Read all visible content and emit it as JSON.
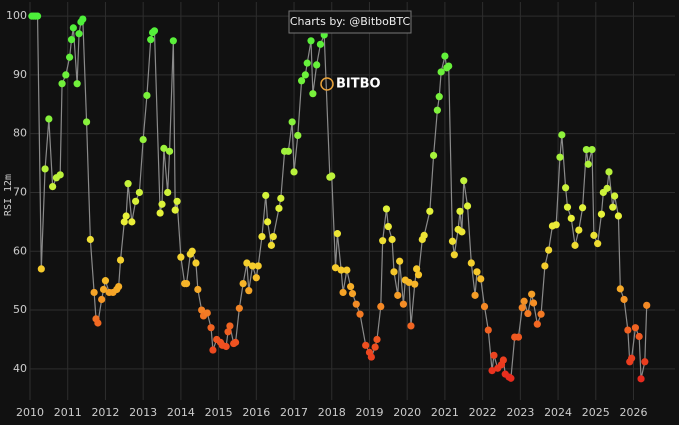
{
  "chart_data": {
    "type": "line-scatter",
    "y_label": "RSI 12m",
    "annotation": "Charts by: @BitboBTC",
    "watermark": "BITBO",
    "grid": true,
    "line_color": "#8a8a8a",
    "colorscale": [
      [
        38,
        "#e8281e"
      ],
      [
        48,
        "#f26a22"
      ],
      [
        56,
        "#f7c52a"
      ],
      [
        66,
        "#e8f23a"
      ],
      [
        80,
        "#8ef23c"
      ],
      [
        100,
        "#4cf03a"
      ]
    ],
    "xlim": [
      2010,
      2027.1
    ],
    "ylim": [
      34.7,
      102.4
    ],
    "xticks": [
      2010,
      2011,
      2012,
      2013,
      2014,
      2015,
      2016,
      2017,
      2018,
      2019,
      2020,
      2021,
      2022,
      2023,
      2024,
      2025,
      2026
    ],
    "yticks": [
      40,
      50,
      60,
      70,
      80,
      90,
      100
    ],
    "x": [
      2010.05,
      2010.1,
      2010.15,
      2010.2,
      2010.3,
      2010.4,
      2010.5,
      2010.6,
      2010.7,
      2010.8,
      2010.85,
      2010.95,
      2011.05,
      2011.1,
      2011.15,
      2011.25,
      2011.3,
      2011.35,
      2011.4,
      2011.5,
      2011.6,
      2011.7,
      2011.75,
      2011.8,
      2011.9,
      2011.95,
      2012.0,
      2012.1,
      2012.2,
      2012.3,
      2012.35,
      2012.4,
      2012.5,
      2012.55,
      2012.6,
      2012.7,
      2012.8,
      2012.9,
      2013.0,
      2013.1,
      2013.2,
      2013.25,
      2013.3,
      2013.45,
      2013.5,
      2013.55,
      2013.65,
      2013.7,
      2013.8,
      2013.85,
      2013.9,
      2014.0,
      2014.1,
      2014.15,
      2014.25,
      2014.3,
      2014.4,
      2014.45,
      2014.55,
      2014.6,
      2014.7,
      2014.8,
      2014.85,
      2014.95,
      2015.05,
      2015.1,
      2015.2,
      2015.25,
      2015.3,
      2015.4,
      2015.45,
      2015.55,
      2015.65,
      2015.75,
      2015.8,
      2015.9,
      2016.0,
      2016.05,
      2016.15,
      2016.25,
      2016.3,
      2016.4,
      2016.45,
      2016.6,
      2016.65,
      2016.75,
      2016.85,
      2016.95,
      2017.0,
      2017.1,
      2017.2,
      2017.3,
      2017.35,
      2017.45,
      2017.5,
      2017.6,
      2017.7,
      2017.8,
      2017.95,
      2018.0,
      2018.1,
      2018.15,
      2018.25,
      2018.3,
      2018.4,
      2018.5,
      2018.55,
      2018.65,
      2018.75,
      2018.9,
      2019.0,
      2019.05,
      2019.15,
      2019.2,
      2019.3,
      2019.35,
      2019.45,
      2019.5,
      2019.6,
      2019.65,
      2019.75,
      2019.8,
      2019.9,
      2019.95,
      2020.05,
      2020.1,
      2020.2,
      2020.25,
      2020.3,
      2020.4,
      2020.45,
      2020.6,
      2020.7,
      2020.8,
      2020.85,
      2020.9,
      2021.0,
      2021.05,
      2021.1,
      2021.2,
      2021.25,
      2021.35,
      2021.4,
      2021.45,
      2021.5,
      2021.6,
      2021.7,
      2021.8,
      2021.85,
      2021.95,
      2022.05,
      2022.15,
      2022.25,
      2022.3,
      2022.4,
      2022.5,
      2022.55,
      2022.6,
      2022.7,
      2022.75,
      2022.85,
      2022.95,
      2023.05,
      2023.1,
      2023.2,
      2023.3,
      2023.35,
      2023.45,
      2023.55,
      2023.65,
      2023.75,
      2023.85,
      2023.95,
      2024.05,
      2024.1,
      2024.2,
      2024.25,
      2024.35,
      2024.45,
      2024.55,
      2024.65,
      2024.75,
      2024.8,
      2024.9,
      2024.95,
      2025.05,
      2025.15,
      2025.2,
      2025.3,
      2025.35,
      2025.45,
      2025.5,
      2025.6,
      2025.65,
      2025.75,
      2025.85,
      2025.9,
      2025.95,
      2026.05,
      2026.15,
      2026.2,
      2026.3,
      2026.35
    ],
    "values": [
      100,
      100,
      100,
      100,
      57,
      74,
      82.5,
      71,
      72.5,
      73,
      88.5,
      90,
      93,
      96,
      98,
      88.5,
      97,
      99,
      99.5,
      82,
      62,
      53,
      48.5,
      47.8,
      51.8,
      53.5,
      55,
      53,
      53,
      53.5,
      54,
      58.5,
      65,
      66,
      71.5,
      65,
      68.5,
      70,
      79,
      86.5,
      96,
      97.2,
      97.5,
      66.5,
      68,
      77.5,
      70,
      77,
      95.8,
      67,
      68.5,
      59,
      54.5,
      54.5,
      59.5,
      60,
      58,
      53.5,
      50,
      49,
      49.5,
      47,
      43.2,
      45,
      44.5,
      44,
      43.8,
      46.3,
      47.3,
      44.3,
      44.5,
      50.3,
      54.5,
      58,
      53.3,
      57.5,
      55.5,
      57.5,
      62.5,
      69.5,
      65,
      61,
      62.5,
      67.3,
      69,
      77,
      77,
      82,
      73.5,
      79.7,
      89,
      90,
      92,
      95.8,
      86.8,
      91.7,
      95.2,
      96.8,
      72.6,
      72.8,
      57.2,
      63,
      56.8,
      53,
      56.8,
      54,
      52.8,
      51,
      49.3,
      44,
      42.8,
      42,
      43.7,
      45,
      50.6,
      61.8,
      67.2,
      64.2,
      62,
      56.5,
      52.5,
      58.3,
      51,
      55.1,
      54.7,
      47.3,
      54.4,
      57,
      56,
      62,
      62.7,
      66.8,
      76.3,
      84,
      86.3,
      90.5,
      93.2,
      91.2,
      91.5,
      61.7,
      59.4,
      63.7,
      66.8,
      63.3,
      72,
      67.7,
      58,
      52.5,
      56.5,
      55.3,
      50.6,
      46.6,
      39.7,
      42.3,
      40.1,
      40.7,
      41.5,
      39.1,
      38.6,
      38.4,
      45.4,
      45.4,
      50.4,
      51.5,
      49.4,
      52.7,
      51.2,
      47.6,
      49.3,
      57.5,
      60.2,
      64.3,
      64.5,
      76,
      79.8,
      70.8,
      67.5,
      65.6,
      61,
      63.6,
      67.4,
      77.3,
      74.8,
      77.3,
      62.7,
      61.3,
      66.3,
      70,
      70.7,
      73.5,
      67.5,
      69.4,
      66,
      53.6,
      51.8,
      46.6,
      41.2,
      41.8,
      47,
      45.5,
      38.3,
      41.2,
      50.8
    ]
  }
}
